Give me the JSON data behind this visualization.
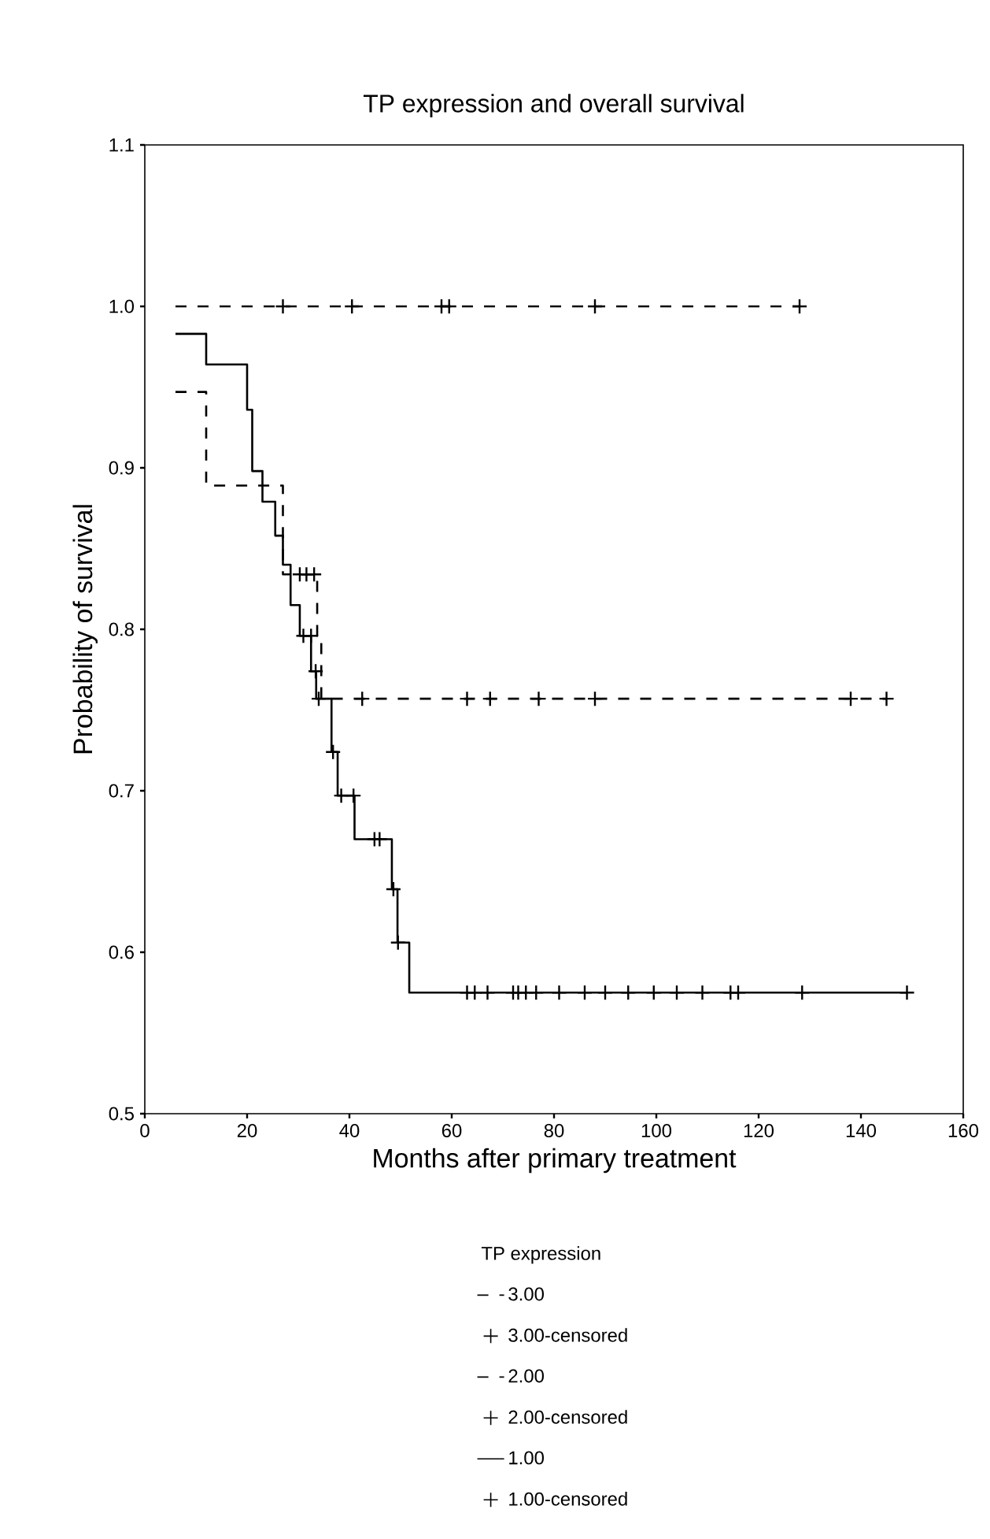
{
  "chart_data": {
    "type": "step",
    "title": "TP expression and overall survival",
    "xlabel": "Months after primary treatment",
    "ylabel": "Probability of survival",
    "legend_title": "TP expression",
    "xlim": [
      0,
      160
    ],
    "xticks": [
      0,
      20,
      40,
      60,
      80,
      100,
      120,
      140,
      160
    ],
    "ylim": [
      0.5,
      1.1
    ],
    "yticks": [
      0.5,
      0.6,
      0.7,
      0.8,
      0.9,
      {
        "value": 1.0,
        "label": "1.0"
      },
      1.1
    ],
    "legend": "bottom",
    "series": [
      {
        "name": "3.00",
        "line_style": "dashed",
        "color": "#000000",
        "x": [
          6,
          128
        ],
        "values": [
          1.0,
          1.0
        ]
      },
      {
        "name": "3.00-censored",
        "type": "scatter",
        "marker": "cross",
        "color": "#000000",
        "x": [
          27,
          40.5,
          58,
          59.5,
          88,
          128
        ],
        "values": [
          1.0,
          1.0,
          1.0,
          1.0,
          1.0,
          1.0
        ]
      },
      {
        "name": "2.00",
        "line_style": "dashed",
        "color": "#000000",
        "x": [
          6,
          12,
          27,
          33.7,
          34.5,
          145
        ],
        "values": [
          0.947,
          0.889,
          0.834,
          0.796,
          0.757,
          0.757
        ]
      },
      {
        "name": "2.00-censored",
        "type": "scatter",
        "marker": "cross",
        "color": "#000000",
        "x": [
          30.3,
          31.6,
          33.1,
          34,
          42.5,
          63,
          67.5,
          77,
          88,
          138,
          145
        ],
        "values": [
          0.834,
          0.834,
          0.834,
          0.757,
          0.757,
          0.757,
          0.757,
          0.757,
          0.757,
          0.757,
          0.757
        ]
      },
      {
        "name": "1.00",
        "line_style": "solid",
        "color": "#000000",
        "x": [
          6,
          12,
          20,
          21,
          23,
          25.5,
          27,
          28.5,
          30.3,
          32.5,
          33.5,
          36.5,
          37.7,
          41,
          48.3,
          49.4,
          51.7,
          149
        ],
        "values": [
          0.983,
          0.964,
          0.936,
          0.898,
          0.879,
          0.858,
          0.84,
          0.815,
          0.796,
          0.774,
          0.757,
          0.724,
          0.697,
          0.67,
          0.639,
          0.606,
          0.575,
          0.575
        ]
      },
      {
        "name": "1.00-censored",
        "type": "scatter",
        "marker": "cross",
        "color": "#000000",
        "x": [
          31,
          32.5,
          33.4,
          36.8,
          38.4,
          40.8,
          44.9,
          45.9,
          48.6,
          49.5,
          63,
          64.5,
          67,
          72,
          73,
          74.5,
          76.5,
          81,
          86,
          90,
          94.5,
          99.5,
          104,
          109,
          114.5,
          116,
          128.5,
          149
        ],
        "values": [
          0.796,
          0.796,
          0.774,
          0.724,
          0.697,
          0.697,
          0.67,
          0.67,
          0.639,
          0.606,
          0.575,
          0.575,
          0.575,
          0.575,
          0.575,
          0.575,
          0.575,
          0.575,
          0.575,
          0.575,
          0.575,
          0.575,
          0.575,
          0.575,
          0.575,
          0.575,
          0.575,
          0.575
        ]
      }
    ]
  }
}
